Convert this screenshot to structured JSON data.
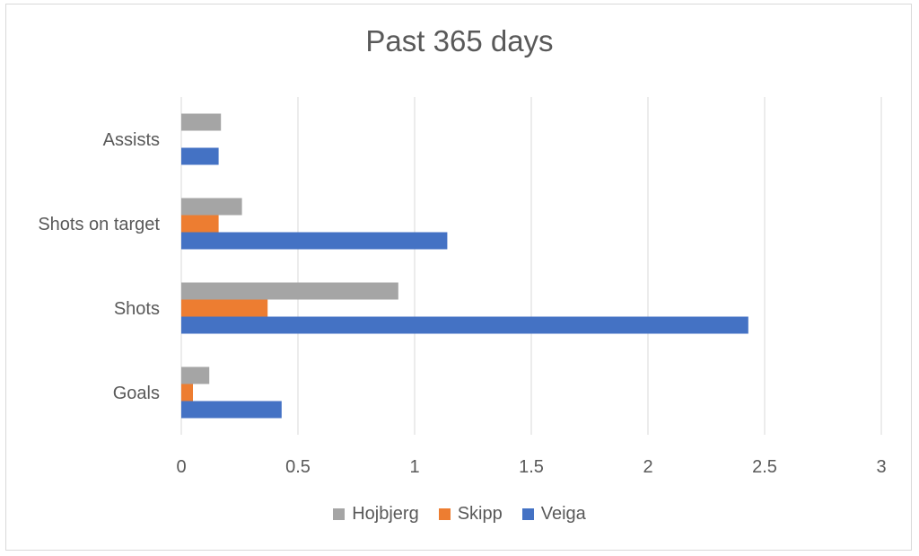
{
  "chart_data": {
    "type": "bar",
    "orientation": "horizontal",
    "title": "Past 365 days",
    "categories": [
      "Goals",
      "Shots",
      "Shots on target",
      "Assists"
    ],
    "series": [
      {
        "name": "Hojbjerg",
        "color": "#a5a5a5",
        "values": [
          0.12,
          0.93,
          0.26,
          0.17
        ]
      },
      {
        "name": "Skipp",
        "color": "#ed7d31",
        "values": [
          0.05,
          0.37,
          0.16,
          0
        ]
      },
      {
        "name": "Veiga",
        "color": "#4472c4",
        "values": [
          0.43,
          2.43,
          1.14,
          0.16
        ]
      }
    ],
    "xlim": [
      0,
      3
    ],
    "xticks": [
      "0",
      "0.5",
      "1",
      "1.5",
      "2",
      "2.5",
      "3"
    ],
    "grid": true,
    "legend": "bottom"
  }
}
